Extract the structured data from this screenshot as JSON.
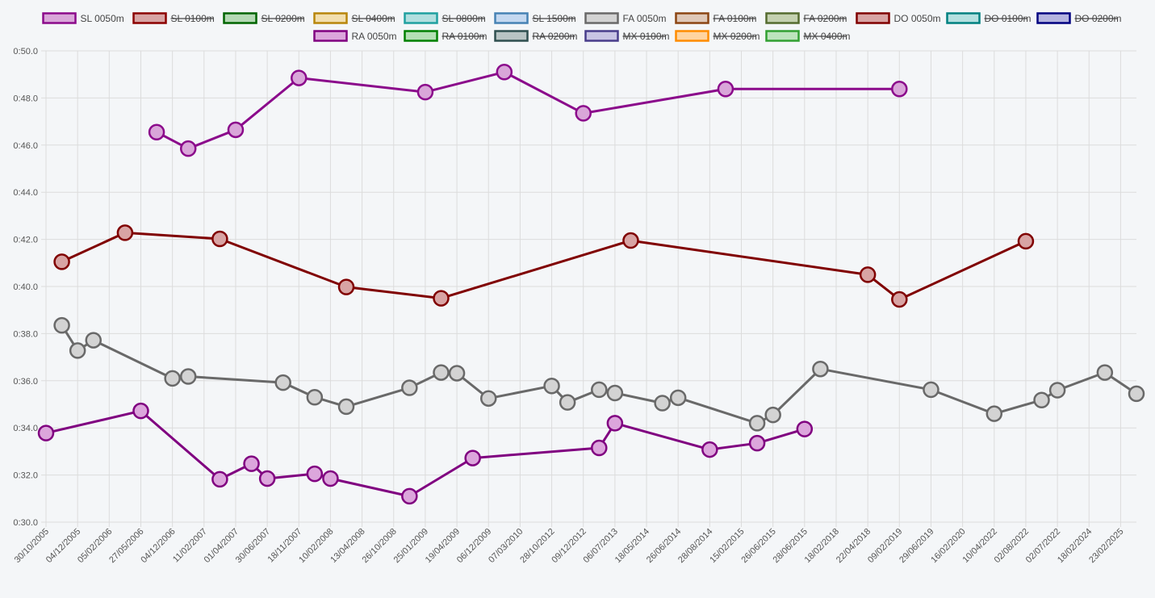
{
  "chart_data": {
    "type": "line",
    "title": "",
    "xlabel": "",
    "ylabel": "",
    "ylim": [
      0.3,
      0.5
    ],
    "y_ticks": [
      "0:30.0",
      "0:32.0",
      "0:34.0",
      "0:36.0",
      "0:38.0",
      "0:40.0",
      "0:42.0",
      "0:44.0",
      "0:46.0",
      "0:48.0",
      "0:50.0"
    ],
    "y_tick_values": [
      0.3,
      0.32,
      0.34,
      0.36,
      0.38,
      0.4,
      0.42,
      0.44,
      0.46,
      0.48,
      0.5
    ],
    "categories": [
      "30/10/2005",
      "",
      "04/12/2005",
      "",
      "05/02/2006",
      "",
      "27/05/2006",
      "",
      "04/12/2006",
      "",
      "11/02/2007",
      "",
      "01/04/2007",
      "",
      "30/06/2007",
      "",
      "18/11/2007",
      "",
      "10/02/2008",
      "",
      "13/04/2008",
      "",
      "26/10/2008",
      "",
      "25/01/2009",
      "",
      "19/04/2009",
      "",
      "06/12/2009",
      "",
      "07/03/2010",
      "",
      "28/10/2012",
      "",
      "09/12/2012",
      "",
      "06/07/2013",
      "",
      "18/05/2014",
      "",
      "26/06/2014",
      "",
      "28/08/2014",
      "",
      "15/02/2015",
      "",
      "26/06/2015",
      "",
      "28/06/2015",
      "",
      "18/02/2018",
      "",
      "22/04/2018",
      "",
      "09/02/2019",
      "",
      "29/06/2019",
      "",
      "16/02/2020",
      "",
      "10/04/2022",
      "",
      "02/08/2022",
      "",
      "02/07/2022",
      "",
      "18/02/2024",
      "",
      "23/02/2025",
      ""
    ],
    "grid": true,
    "legend_position": "top",
    "legend": [
      {
        "label": "SL 0050m",
        "fill": "#d9a6d9",
        "border": "#8b0a8b",
        "hidden": false
      },
      {
        "label": "SL 0100m",
        "fill": "#d8a4a4",
        "border": "#8b0000",
        "hidden": true
      },
      {
        "label": "SL 0200m",
        "fill": "#b4d9b4",
        "border": "#006400",
        "hidden": true
      },
      {
        "label": "SL 0400m",
        "fill": "#f2dfae",
        "border": "#b8860b",
        "hidden": true
      },
      {
        "label": "SL 0800m",
        "fill": "#b2dfdf",
        "border": "#20a0a0",
        "hidden": true
      },
      {
        "label": "SL 1500m",
        "fill": "#c4d8f0",
        "border": "#4682b4",
        "hidden": true
      },
      {
        "label": "FA 0050m",
        "fill": "#d3d3d3",
        "border": "#696969",
        "hidden": false
      },
      {
        "label": "FA 0100m",
        "fill": "#dfc8b8",
        "border": "#8b4513",
        "hidden": true
      },
      {
        "label": "FA 0200m",
        "fill": "#c4d1b0",
        "border": "#556b2f",
        "hidden": true
      },
      {
        "label": "DO 0050m",
        "fill": "#d8a4a4",
        "border": "#800000",
        "hidden": false
      },
      {
        "label": "DO 0100m",
        "fill": "#b4e0e0",
        "border": "#008080",
        "hidden": true
      },
      {
        "label": "DO 0200m",
        "fill": "#b4b4e0",
        "border": "#000080",
        "hidden": true
      },
      {
        "label": "RA 0050m",
        "fill": "#dca6dc",
        "border": "#800080",
        "hidden": false
      },
      {
        "label": "RA 0100m",
        "fill": "#b4e0b4",
        "border": "#008000",
        "hidden": true
      },
      {
        "label": "RA 0200m",
        "fill": "#b8c4c4",
        "border": "#2f4f4f",
        "hidden": true
      },
      {
        "label": "MX 0100m",
        "fill": "#c8c4e4",
        "border": "#483d8b",
        "hidden": true
      },
      {
        "label": "MX 0200m",
        "fill": "#ffd4a0",
        "border": "#ff8c00",
        "hidden": true
      },
      {
        "label": "MX 0400m",
        "fill": "#bde4bd",
        "border": "#32a032",
        "hidden": true
      }
    ],
    "series": [
      {
        "name": "SL 0050m",
        "stroke": "#8b0a8b",
        "fill": "#d9a6d9",
        "points": [
          [
            7,
            0.4655
          ],
          [
            9,
            0.4585
          ],
          [
            12,
            0.4665
          ],
          [
            16,
            0.4885
          ],
          [
            24,
            0.4825
          ],
          [
            29,
            0.491
          ],
          [
            34,
            0.4735
          ],
          [
            43,
            0.4838
          ],
          [
            54,
            0.4838
          ]
        ]
      },
      {
        "name": "FA 0050m",
        "stroke": "#696969",
        "fill": "#d3d3d3",
        "points": [
          [
            1,
            0.3835
          ],
          [
            2,
            0.3728
          ],
          [
            3,
            0.3772
          ],
          [
            8,
            0.361
          ],
          [
            9,
            0.3618
          ],
          [
            15,
            0.3592
          ],
          [
            17,
            0.353
          ],
          [
            19,
            0.349
          ],
          [
            23,
            0.357
          ],
          [
            25,
            0.3635
          ],
          [
            26,
            0.3632
          ],
          [
            28,
            0.3525
          ],
          [
            32,
            0.3578
          ],
          [
            33,
            0.3508
          ],
          [
            35,
            0.3562
          ],
          [
            36,
            0.3548
          ],
          [
            39,
            0.3505
          ],
          [
            40,
            0.3528
          ],
          [
            45,
            0.342
          ],
          [
            46,
            0.3455
          ],
          [
            49,
            0.365
          ],
          [
            56,
            0.3562
          ],
          [
            60,
            0.346
          ],
          [
            63,
            0.3518
          ],
          [
            64,
            0.356
          ],
          [
            67,
            0.3635
          ],
          [
            69,
            0.3545
          ]
        ]
      },
      {
        "name": "DO 0050m",
        "stroke": "#800000",
        "fill": "#d8a4a4",
        "points": [
          [
            1,
            0.4105
          ],
          [
            5,
            0.4228
          ],
          [
            11,
            0.4202
          ],
          [
            19,
            0.3998
          ],
          [
            25,
            0.395
          ],
          [
            37,
            0.4195
          ],
          [
            52,
            0.405
          ],
          [
            54,
            0.3945
          ],
          [
            62,
            0.4192
          ]
        ]
      },
      {
        "name": "RA 0050m",
        "stroke": "#800080",
        "fill": "#dca6dc",
        "points": [
          [
            0,
            0.3378
          ],
          [
            6,
            0.3472
          ],
          [
            11,
            0.3182
          ],
          [
            13,
            0.3248
          ],
          [
            14,
            0.3185
          ],
          [
            17,
            0.3205
          ],
          [
            18,
            0.3185
          ],
          [
            23,
            0.311
          ],
          [
            27,
            0.3272
          ],
          [
            35,
            0.3315
          ],
          [
            36,
            0.342
          ],
          [
            42,
            0.3308
          ],
          [
            45,
            0.3335
          ],
          [
            48,
            0.3395
          ]
        ]
      }
    ]
  }
}
